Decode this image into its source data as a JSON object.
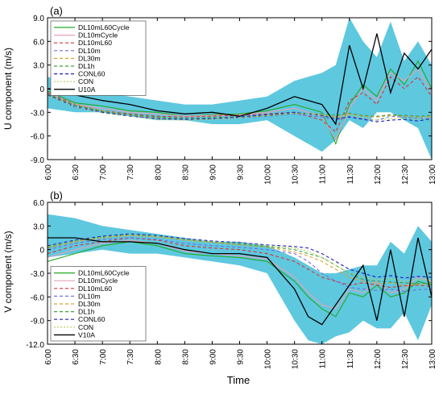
{
  "colors": {
    "DL10mL60Cycle": "#22aa22",
    "DL10mCycle": "#e8a0b8",
    "DL10mL60": "#e03030",
    "DL10m": "#7070e0",
    "DL30m": "#e0a030",
    "DL1h": "#40a040",
    "CONL60": "#2020c0",
    "CON": "#b0d060",
    "Obs": "#000000",
    "band": "#5ec8df"
  },
  "x_labels": [
    "6:00",
    "6:30",
    "7:00",
    "7:30",
    "8:00",
    "8:30",
    "9:00",
    "9:30",
    "10:00",
    "10:30",
    "11:00",
    "11:30",
    "12:00",
    "12:30",
    "13:00"
  ],
  "x_title": "Time",
  "chart_data": [
    {
      "type": "line",
      "panel_label": "(a)",
      "ylabel": "U component (m/s)",
      "ylim": [
        -9.0,
        9.0
      ],
      "yticks": [
        "9.0",
        "6.0",
        "3.0",
        "0",
        "-3.0",
        "-6.0",
        "-9.0"
      ],
      "ytick_values": [
        9,
        6,
        3,
        0,
        -3,
        -6,
        -9
      ],
      "legend_position": "top-left",
      "xlim": [
        0,
        84
      ],
      "x": [
        0,
        6,
        12,
        18,
        24,
        30,
        36,
        42,
        48,
        54,
        60,
        63,
        66,
        69,
        72,
        75,
        78,
        81,
        84
      ],
      "band_upper": [
        1.5,
        0.5,
        -0.5,
        -1.0,
        -1.5,
        -2.0,
        -2.0,
        -1.5,
        -1.0,
        1.0,
        2.0,
        3.0,
        9.0,
        6.0,
        4.0,
        8.5,
        3.5,
        6.0,
        3.0
      ],
      "band_lower": [
        -2.5,
        -3.0,
        -3.0,
        -3.5,
        -4.0,
        -4.0,
        -4.5,
        -4.5,
        -4.0,
        -6.0,
        -8.0,
        -6.5,
        -4.0,
        -5.0,
        -3.0,
        -3.0,
        -4.0,
        -5.0,
        -9.0
      ],
      "series": [
        {
          "name": "DL10mL60Cycle",
          "dash": "",
          "values": [
            -0.3,
            -1.8,
            -2.2,
            -2.8,
            -3.0,
            -3.5,
            -3.3,
            -3.2,
            -2.8,
            -2.0,
            -3.0,
            -7.0,
            -2.0,
            0.5,
            -1.0,
            2.5,
            0.5,
            3.5,
            0.0
          ]
        },
        {
          "name": "DL10mCycle",
          "dash": "",
          "values": [
            -0.5,
            -2.0,
            -2.5,
            -3.0,
            -3.2,
            -3.5,
            -3.4,
            -3.3,
            -3.0,
            -2.5,
            -3.5,
            -6.5,
            -2.5,
            0.0,
            -1.5,
            2.0,
            1.0,
            2.5,
            -0.5
          ]
        },
        {
          "name": "DL10mL60",
          "dash": "4,3",
          "values": [
            -0.5,
            -2.0,
            -2.8,
            -3.2,
            -3.5,
            -3.6,
            -3.5,
            -3.4,
            -3.2,
            -3.0,
            -4.0,
            -5.5,
            -1.5,
            -0.5,
            -2.0,
            1.5,
            0.0,
            1.5,
            -1.0
          ]
        },
        {
          "name": "DL10m",
          "dash": "4,3",
          "values": [
            -0.8,
            -2.2,
            -3.0,
            -3.4,
            -3.8,
            -3.9,
            -3.8,
            -3.7,
            -3.5,
            -3.2,
            -3.6,
            -4.0,
            -3.5,
            -3.8,
            -4.0,
            -3.5,
            -3.6,
            -3.8,
            -3.7
          ]
        },
        {
          "name": "DL30m",
          "dash": "4,3",
          "values": [
            -0.8,
            -2.0,
            -2.8,
            -3.3,
            -3.7,
            -3.8,
            -3.7,
            -3.6,
            -3.4,
            -3.1,
            -3.3,
            -3.6,
            -3.2,
            -3.5,
            -3.6,
            -3.4,
            -3.5,
            -3.6,
            -3.5
          ]
        },
        {
          "name": "DL1h",
          "dash": "4,3",
          "values": [
            -0.7,
            -2.1,
            -2.9,
            -3.3,
            -3.6,
            -3.8,
            -3.7,
            -3.6,
            -3.4,
            -3.1,
            -3.2,
            -3.4,
            -3.1,
            -3.4,
            -3.5,
            -3.3,
            -3.4,
            -3.5,
            -3.4
          ]
        },
        {
          "name": "CONL60",
          "dash": "4,3",
          "values": [
            -0.8,
            -2.3,
            -3.0,
            -3.5,
            -3.8,
            -3.9,
            -3.8,
            -3.6,
            -3.3,
            -3.0,
            -3.4,
            -3.8,
            -3.6,
            -3.9,
            -4.2,
            -4.0,
            -3.9,
            -4.1,
            -3.8
          ]
        },
        {
          "name": "CON",
          "dash": "2,2",
          "values": [
            -0.9,
            -2.3,
            -3.1,
            -3.5,
            -3.9,
            -4.0,
            -3.9,
            -3.7,
            -3.4,
            -3.1,
            -3.3,
            -3.7,
            -3.4,
            -3.7,
            -4.0,
            -3.8,
            -3.7,
            -3.9,
            -3.6
          ]
        },
        {
          "name": "U10A",
          "dash": "",
          "obs": true,
          "values": [
            0.0,
            -0.8,
            -1.5,
            -2.0,
            -2.8,
            -3.2,
            -3.0,
            -3.5,
            -2.5,
            -1.0,
            -2.0,
            -4.5,
            5.5,
            0.0,
            7.0,
            -0.5,
            4.5,
            2.5,
            5.0
          ]
        }
      ]
    },
    {
      "type": "line",
      "panel_label": "(b)",
      "ylabel": "V component (m/s)",
      "ylim": [
        -12.0,
        6.0
      ],
      "yticks": [
        "6.0",
        "3.0",
        "0",
        "-3.0",
        "-6.0",
        "-9.0",
        "-12.0"
      ],
      "ytick_values": [
        6,
        3,
        0,
        -3,
        -6,
        -9,
        -12
      ],
      "legend_position": "bottom-left",
      "xlim": [
        0,
        84
      ],
      "x": [
        0,
        6,
        12,
        18,
        24,
        30,
        36,
        42,
        48,
        54,
        57,
        60,
        63,
        66,
        69,
        72,
        75,
        78,
        81,
        84
      ],
      "band_upper": [
        4.5,
        4.0,
        3.0,
        2.5,
        2.0,
        1.5,
        1.0,
        1.0,
        0.5,
        -1.0,
        -2.0,
        -3.0,
        -3.0,
        -2.5,
        -2.0,
        -2.0,
        1.0,
        -0.5,
        3.0,
        1.0
      ],
      "band_lower": [
        -1.0,
        -0.5,
        0.0,
        -0.5,
        -0.5,
        -1.0,
        -1.5,
        -2.0,
        -3.0,
        -9.0,
        -11.5,
        -12.0,
        -11.0,
        -10.5,
        -9.0,
        -10.0,
        -10.0,
        -8.0,
        -11.5,
        -7.0
      ],
      "series": [
        {
          "name": "DL10mL60Cycle",
          "dash": "",
          "values": [
            -1.5,
            -0.5,
            0.5,
            1.0,
            0.5,
            -0.5,
            -0.8,
            -1.0,
            -1.5,
            -4.0,
            -6.0,
            -7.5,
            -8.5,
            -5.5,
            -6.0,
            -4.5,
            -6.0,
            -5.5,
            -4.0,
            -4.5
          ]
        },
        {
          "name": "DL10mCycle",
          "dash": "",
          "values": [
            -1.0,
            0.0,
            0.8,
            1.2,
            0.8,
            -0.2,
            -0.5,
            -0.8,
            -1.2,
            -3.5,
            -5.5,
            -7.0,
            -7.5,
            -5.0,
            -5.5,
            -4.0,
            -5.5,
            -5.0,
            -3.5,
            -4.0
          ]
        },
        {
          "name": "DL10mL60",
          "dash": "4,3",
          "values": [
            -0.5,
            0.5,
            1.0,
            1.5,
            1.2,
            0.5,
            0.2,
            0.0,
            -0.5,
            -1.5,
            -2.5,
            -3.5,
            -4.0,
            -4.5,
            -4.2,
            -4.5,
            -4.8,
            -4.6,
            -4.5,
            -4.7
          ]
        },
        {
          "name": "DL10m",
          "dash": "4,3",
          "values": [
            0.0,
            0.8,
            1.3,
            1.5,
            1.3,
            0.8,
            0.5,
            0.3,
            0.0,
            -0.5,
            -1.5,
            -3.0,
            -4.0,
            -4.8,
            -5.0,
            -5.2,
            -5.0,
            -5.3,
            -5.1,
            -5.0
          ]
        },
        {
          "name": "DL30m",
          "dash": "4,3",
          "values": [
            0.2,
            1.0,
            1.5,
            1.8,
            1.6,
            1.2,
            0.9,
            0.6,
            0.3,
            -0.3,
            -0.8,
            -1.5,
            -2.5,
            -3.5,
            -4.0,
            -4.3,
            -4.2,
            -4.5,
            -4.4,
            -4.3
          ]
        },
        {
          "name": "DL1h",
          "dash": "4,3",
          "values": [
            0.3,
            1.1,
            1.6,
            1.9,
            1.7,
            1.3,
            1.0,
            0.7,
            0.4,
            0.0,
            -0.5,
            -1.0,
            -2.0,
            -3.0,
            -3.8,
            -4.0,
            -4.1,
            -4.2,
            -4.3,
            -4.2
          ]
        },
        {
          "name": "CONL60",
          "dash": "4,3",
          "values": [
            0.5,
            1.2,
            1.7,
            2.0,
            1.8,
            1.4,
            1.1,
            0.9,
            0.6,
            0.4,
            0.2,
            -0.5,
            -1.5,
            -2.5,
            -3.0,
            -3.5,
            -3.3,
            -3.6,
            -3.4,
            -3.5
          ]
        },
        {
          "name": "CON",
          "dash": "2,2",
          "values": [
            0.4,
            1.1,
            1.6,
            1.9,
            1.7,
            1.3,
            1.0,
            0.8,
            0.5,
            0.2,
            -0.2,
            -1.0,
            -2.0,
            -3.0,
            -3.5,
            -3.8,
            -3.7,
            -4.0,
            -3.8,
            -3.9
          ]
        },
        {
          "name": "V10A",
          "dash": "",
          "obs": true,
          "values": [
            1.5,
            1.5,
            1.0,
            1.0,
            0.8,
            0.0,
            -0.5,
            -0.5,
            -1.0,
            -5.0,
            -8.5,
            -9.5,
            -7.0,
            -4.5,
            -2.0,
            -9.0,
            0.0,
            -8.5,
            1.5,
            -6.0
          ]
        }
      ]
    }
  ]
}
